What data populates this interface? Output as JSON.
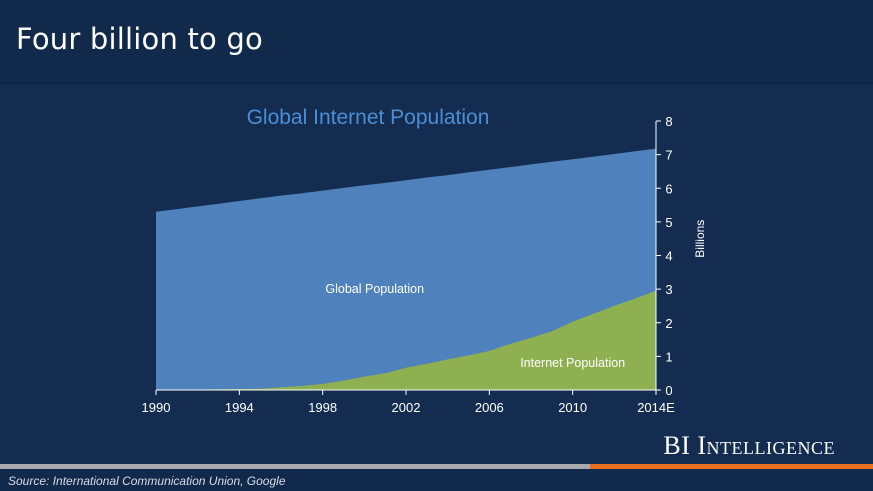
{
  "page_title": "Four billion to go",
  "brand": "BI Intelligence",
  "source": "Source: International Communication Union, Google",
  "colors": {
    "background": "#11294a",
    "panel": "#132c4f",
    "global": "#4f81bd",
    "internet": "#8fb050",
    "chart_title": "#4a8fd6",
    "footer_gray": "#a7a9ac",
    "footer_orange": "#e8701e"
  },
  "chart_data": {
    "type": "area",
    "title": "Global Internet Population",
    "xlabel": "",
    "ylabel": "Billions",
    "x_tick_labels": [
      "1990",
      "1994",
      "1998",
      "2002",
      "2006",
      "2010",
      "2014E"
    ],
    "x_tick_years": [
      1990,
      1994,
      1998,
      2002,
      2006,
      2010,
      2014
    ],
    "y_ticks": [
      "0",
      "1",
      "2",
      "3",
      "4",
      "5",
      "6",
      "7",
      "8"
    ],
    "ylim": [
      0,
      8
    ],
    "xlim": [
      1990,
      2014
    ],
    "grid": false,
    "stacked": false,
    "x": [
      1990,
      1991,
      1992,
      1993,
      1994,
      1995,
      1996,
      1997,
      1998,
      1999,
      2000,
      2001,
      2002,
      2003,
      2004,
      2005,
      2006,
      2007,
      2008,
      2009,
      2010,
      2011,
      2012,
      2013,
      2014
    ],
    "series": [
      {
        "name": "Global Population",
        "values": [
          5.3,
          5.38,
          5.46,
          5.54,
          5.62,
          5.7,
          5.78,
          5.85,
          5.93,
          6.01,
          6.09,
          6.16,
          6.24,
          6.32,
          6.39,
          6.47,
          6.55,
          6.63,
          6.71,
          6.79,
          6.86,
          6.94,
          7.02,
          7.1,
          7.18
        ]
      },
      {
        "name": "Internet Population",
        "values": [
          0.0,
          0.01,
          0.01,
          0.02,
          0.03,
          0.04,
          0.08,
          0.12,
          0.18,
          0.28,
          0.4,
          0.5,
          0.66,
          0.78,
          0.91,
          1.03,
          1.16,
          1.37,
          1.55,
          1.75,
          2.03,
          2.27,
          2.5,
          2.72,
          2.95
        ]
      }
    ]
  }
}
